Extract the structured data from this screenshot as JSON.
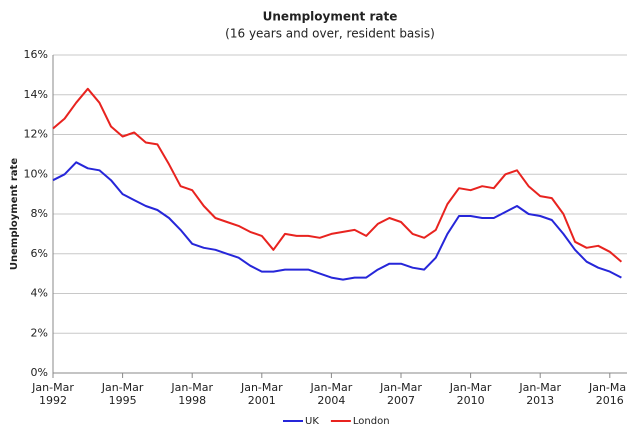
{
  "chart_data": {
    "type": "line",
    "title": "Unemployment rate",
    "subtitle": "(16 years and over, resident basis)",
    "y_label": "Unemployment rate",
    "categories": [
      "Jan-Mar 1992",
      null,
      null,
      null,
      null,
      null,
      "Jan-Mar 1995",
      null,
      null,
      null,
      null,
      null,
      "Jan-Mar 1998",
      null,
      null,
      null,
      null,
      null,
      "Jan-Mar 2001",
      null,
      null,
      null,
      null,
      null,
      "Jan-Mar 2004",
      null,
      null,
      null,
      null,
      null,
      "Jan-Mar 2007",
      null,
      null,
      null,
      null,
      null,
      "Jan-Mar 2010",
      null,
      null,
      null,
      null,
      null,
      "Jan-Mar 2013",
      null,
      null,
      null,
      null,
      null,
      "Jan-Mar 2016",
      null
    ],
    "series": [
      {
        "name": "UK",
        "color": "#2626d9",
        "values": [
          9.7,
          10.0,
          10.6,
          10.3,
          10.2,
          9.7,
          9.0,
          8.7,
          8.4,
          8.2,
          7.8,
          7.2,
          6.5,
          6.3,
          6.2,
          6.0,
          5.8,
          5.4,
          5.1,
          5.1,
          5.2,
          5.2,
          5.2,
          5.0,
          4.8,
          4.7,
          4.8,
          4.8,
          5.2,
          5.5,
          5.5,
          5.3,
          5.2,
          5.8,
          7.0,
          7.9,
          7.9,
          7.8,
          7.8,
          8.1,
          8.4,
          8.0,
          7.9,
          7.7,
          7.0,
          6.2,
          5.6,
          5.3,
          5.1,
          4.8
        ]
      },
      {
        "name": "London",
        "color": "#e8231f",
        "values": [
          12.3,
          12.8,
          13.6,
          14.3,
          13.6,
          12.4,
          11.9,
          12.1,
          11.6,
          11.5,
          10.5,
          9.4,
          9.2,
          8.4,
          7.8,
          7.6,
          7.4,
          7.1,
          6.9,
          6.2,
          7.0,
          6.9,
          6.9,
          6.8,
          7.0,
          7.1,
          7.2,
          6.9,
          7.5,
          7.8,
          7.6,
          7.0,
          6.8,
          7.2,
          8.5,
          9.3,
          9.2,
          9.4,
          9.3,
          10.0,
          10.2,
          9.4,
          8.9,
          8.8,
          8.0,
          6.6,
          6.3,
          6.4,
          6.1,
          5.6
        ]
      }
    ],
    "ylim": [
      0,
      16
    ],
    "yticks": [
      {
        "value": 0,
        "label": "0%"
      },
      {
        "value": 2,
        "label": "2%"
      },
      {
        "value": 4,
        "label": "4%"
      },
      {
        "value": 6,
        "label": "6%"
      },
      {
        "value": 8,
        "label": "8%"
      },
      {
        "value": 10,
        "label": "10%"
      },
      {
        "value": 12,
        "label": "12%"
      },
      {
        "value": 14,
        "label": "14%"
      },
      {
        "value": 16,
        "label": "16%"
      }
    ],
    "grid": true
  }
}
